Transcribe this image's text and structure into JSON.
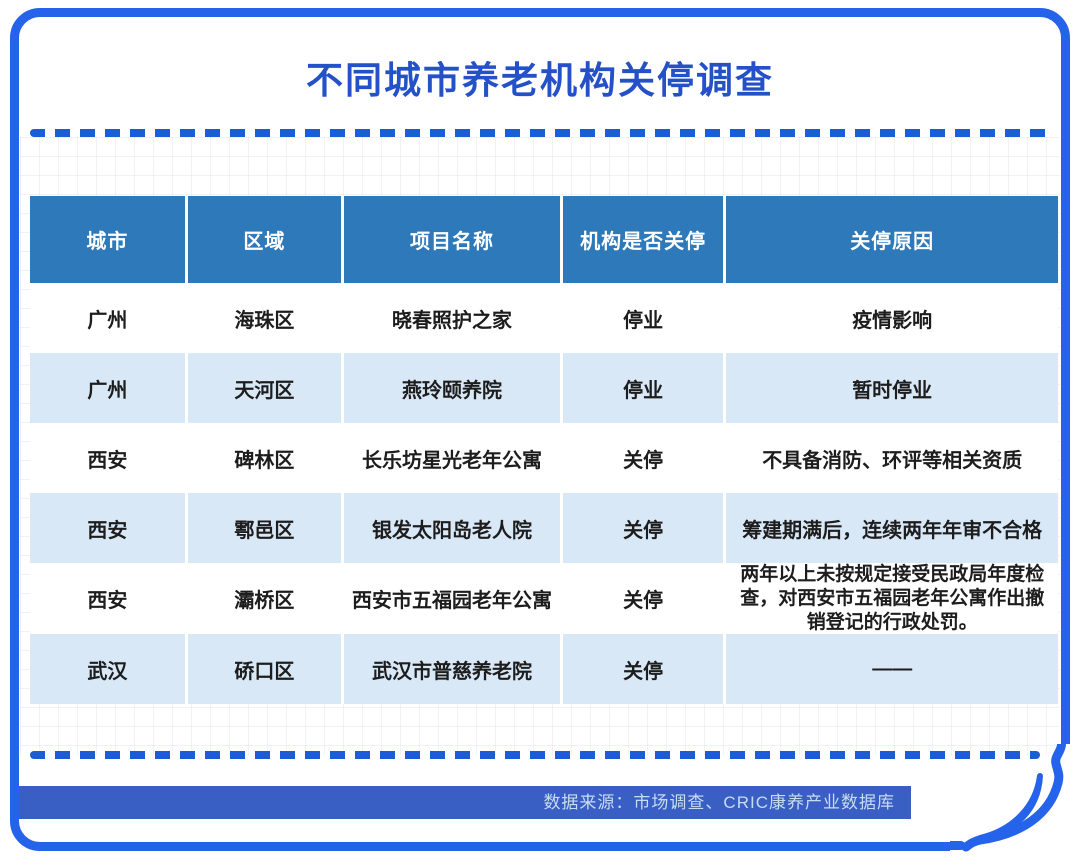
{
  "title": "不同城市养老机构关停调查",
  "source_badge": {
    "text": "数据来源：市场调查、CRIC康养产业数据库"
  },
  "colors": {
    "border_blue": "#2563eb",
    "title_blue": "#2451c8",
    "dot_blue": "#1b5cd7",
    "header_blue": "#2e79b9",
    "row_alt_blue": "#d9e8f7",
    "source_bar_blue": "#3a5fc4"
  },
  "chart_data": {
    "type": "table",
    "title": "不同城市养老机构关停调查",
    "columns": [
      "城市",
      "区域",
      "项目名称",
      "机构是否关停",
      "关停原因"
    ],
    "rows": [
      [
        "广州",
        "海珠区",
        "晓春照护之家",
        "停业",
        "疫情影响"
      ],
      [
        "广州",
        "天河区",
        "燕玲颐养院",
        "停业",
        "暂时停业"
      ],
      [
        "西安",
        "碑林区",
        "长乐坊星光老年公寓",
        "关停",
        "不具备消防、环评等相关资质"
      ],
      [
        "西安",
        "鄠邑区",
        "银发太阳岛老人院",
        "关停",
        "筹建期满后，连续两年年审不合格"
      ],
      [
        "西安",
        "灞桥区",
        "西安市五福园老年公寓",
        "关停",
        "两年以上未按规定接受民政局年度检查，对西安市五福园老年公寓作出撤销登记的行政处罚。"
      ],
      [
        "武汉",
        "硚口区",
        "武汉市普慈养老院",
        "关停",
        "——"
      ]
    ],
    "source": "数据来源：市场调查、CRIC康养产业数据库",
    "layout": {
      "grid": "graph-paper",
      "alt_row_shading": true
    }
  }
}
